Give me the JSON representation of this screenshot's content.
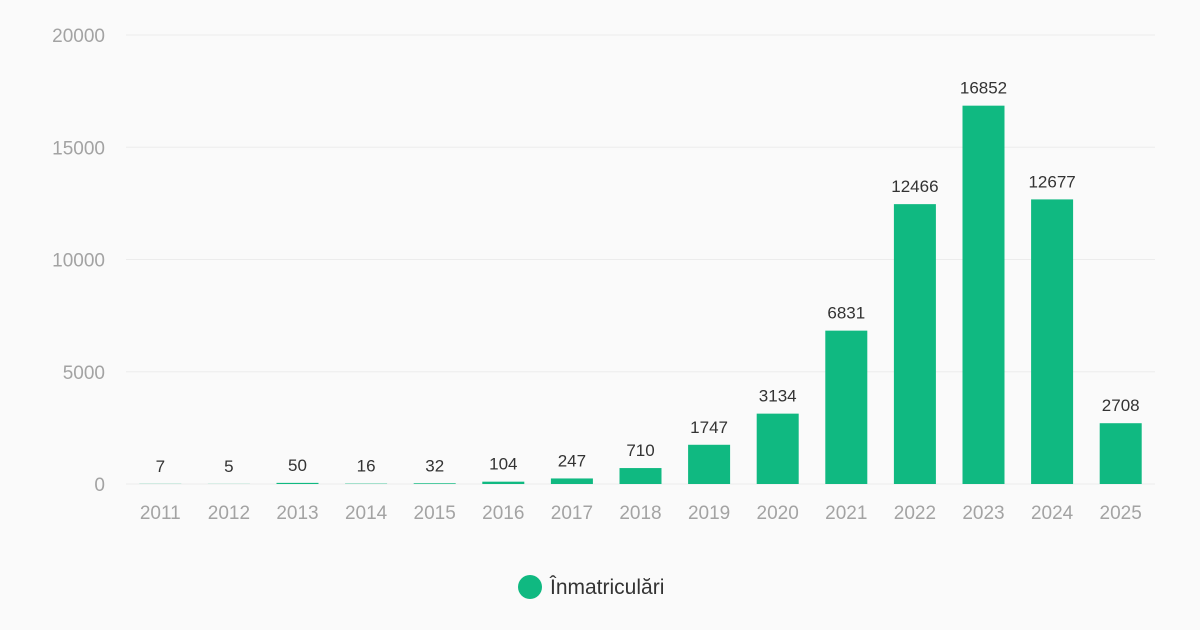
{
  "chart_data": {
    "type": "bar",
    "categories": [
      "2011",
      "2012",
      "2013",
      "2014",
      "2015",
      "2016",
      "2017",
      "2018",
      "2019",
      "2020",
      "2021",
      "2022",
      "2023",
      "2024",
      "2025"
    ],
    "series": [
      {
        "name": "Înmatriculări",
        "values": [
          7,
          5,
          50,
          16,
          32,
          104,
          247,
          710,
          1747,
          3134,
          6831,
          12466,
          16852,
          12677,
          2708
        ],
        "color": "#10b981"
      }
    ],
    "title": "",
    "xlabel": "",
    "ylabel": "",
    "ylim": [
      0,
      20000
    ],
    "yticks": [
      0,
      5000,
      10000,
      15000,
      20000
    ],
    "grid": true,
    "legend": "bottom-center",
    "colors": {
      "bar": "#10b981",
      "grid": "#ececec",
      "tick_text": "#a3a3a3",
      "label_text": "#333333",
      "background": "#fafafa"
    }
  }
}
